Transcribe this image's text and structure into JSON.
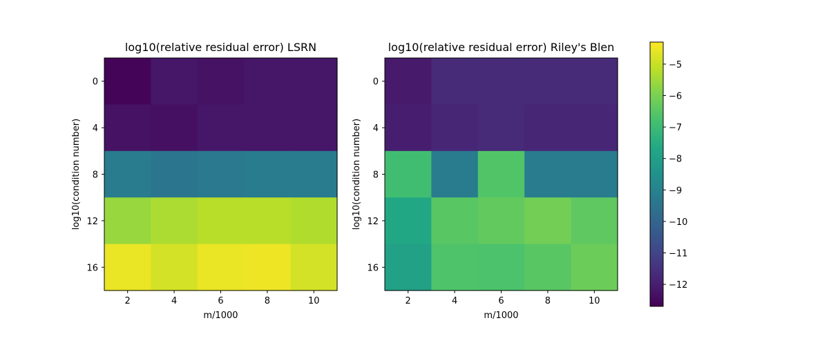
{
  "chart_data": [
    {
      "type": "heatmap",
      "title": "log10(relative residual error) LSRN",
      "xlabel": "m/1000",
      "ylabel": "log10(condition number)",
      "x_categories": [
        2,
        4,
        6,
        8,
        10
      ],
      "y_categories": [
        0,
        4,
        8,
        12,
        16
      ],
      "x_ticks": [
        "2",
        "4",
        "6",
        "8",
        "10"
      ],
      "y_ticks": [
        "0",
        "4",
        "8",
        "12",
        "16"
      ],
      "values": [
        [
          -12.6,
          -12.2,
          -12.3,
          -12.2,
          -12.2
        ],
        [
          -12.3,
          -12.35,
          -12.2,
          -12.2,
          -12.2
        ],
        [
          -9.2,
          -9.4,
          -9.3,
          -9.2,
          -9.2
        ],
        [
          -5.6,
          -5.35,
          -5.2,
          -5.2,
          -5.3
        ],
        [
          -4.55,
          -4.85,
          -4.55,
          -4.5,
          -4.85
        ]
      ]
    },
    {
      "type": "heatmap",
      "title": "log10(relative residual error) Riley's Blen",
      "xlabel": "m/1000",
      "ylabel": "log10(condition number)",
      "x_categories": [
        2,
        4,
        6,
        8,
        10
      ],
      "y_categories": [
        0,
        4,
        8,
        12,
        16
      ],
      "x_ticks": [
        "2",
        "4",
        "6",
        "8",
        "10"
      ],
      "y_ticks": [
        "0",
        "4",
        "8",
        "12",
        "16"
      ],
      "values": [
        [
          -12.1,
          -11.7,
          -11.7,
          -11.7,
          -11.7
        ],
        [
          -12.0,
          -11.8,
          -11.7,
          -11.8,
          -11.8
        ],
        [
          -6.9,
          -9.2,
          -6.6,
          -9.2,
          -9.2
        ],
        [
          -7.7,
          -6.5,
          -6.35,
          -6.1,
          -6.4
        ],
        [
          -7.9,
          -6.65,
          -6.7,
          -6.5,
          -6.2
        ]
      ]
    }
  ],
  "colorbar": {
    "colormap": "viridis",
    "range": [
      -12.7,
      -4.3
    ],
    "ticks": [
      "−5",
      "−6",
      "−7",
      "−8",
      "−9",
      "−10",
      "−11",
      "−12"
    ],
    "tick_values": [
      -5,
      -6,
      -7,
      -8,
      -9,
      -10,
      -11,
      -12
    ]
  }
}
